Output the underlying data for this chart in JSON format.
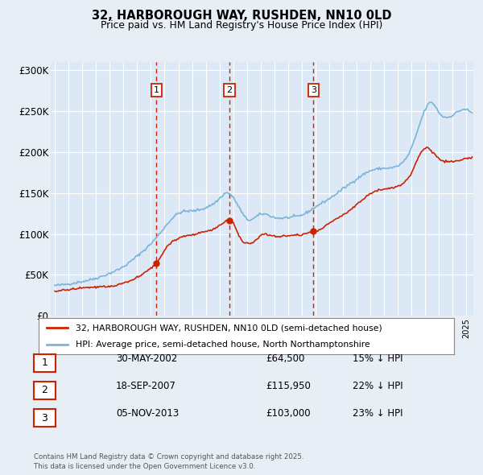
{
  "title": "32, HARBOROUGH WAY, RUSHDEN, NN10 0LD",
  "subtitle": "Price paid vs. HM Land Registry's House Price Index (HPI)",
  "legend_line1": "32, HARBOROUGH WAY, RUSHDEN, NN10 0LD (semi-detached house)",
  "legend_line2": "HPI: Average price, semi-detached house, North Northamptonshire",
  "footer": "Contains HM Land Registry data © Crown copyright and database right 2025.\nThis data is licensed under the Open Government Licence v3.0.",
  "hpi_color": "#7ab4d8",
  "price_color": "#cc2200",
  "marker_color": "#cc2200",
  "vline_color": "#cc2200",
  "background_color": "#e8eef5",
  "plot_bg_color": "#dce8f5",
  "grid_color": "#ffffff",
  "ylim": [
    0,
    310000
  ],
  "yticks": [
    0,
    50000,
    100000,
    150000,
    200000,
    250000,
    300000
  ],
  "ytick_labels": [
    "£0",
    "£50K",
    "£100K",
    "£150K",
    "£200K",
    "£250K",
    "£300K"
  ],
  "sale_dates": [
    2002.41,
    2007.72,
    2013.84
  ],
  "sale_prices": [
    64500,
    115950,
    103000
  ],
  "sale_labels": [
    "1",
    "2",
    "3"
  ],
  "table_rows": [
    [
      "1",
      "30-MAY-2002",
      "£64,500",
      "15% ↓ HPI"
    ],
    [
      "2",
      "18-SEP-2007",
      "£115,950",
      "22% ↓ HPI"
    ],
    [
      "3",
      "05-NOV-2013",
      "£103,000",
      "23% ↓ HPI"
    ]
  ]
}
